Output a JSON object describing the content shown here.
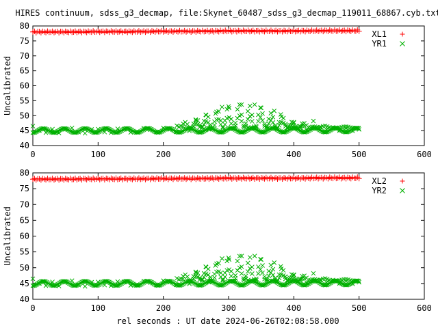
{
  "figure": {
    "title": "HIRES continuum, sdss_g3_decmap, file:Skynet_60487_sdss_g3_decmap_119011_68867.cyb.txt",
    "xlabel": "rel seconds : UT date 2024-06-26T02:08:58.000"
  },
  "colors": {
    "xl": "#ff0000",
    "yr": "#00b000",
    "frame": "#000000"
  },
  "chart_data": [
    {
      "type": "scatter",
      "title": "HIRES continuum, sdss_g3_decmap, file:Skynet_60487_sdss_g3_decmap_119011_68867.cyb.txt",
      "xlabel": "",
      "ylabel": "Uncalibrated",
      "xlim": [
        0,
        600
      ],
      "ylim": [
        40,
        80
      ],
      "xticks": [
        0,
        100,
        200,
        300,
        400,
        500,
        600
      ],
      "yticks": [
        40,
        45,
        50,
        55,
        60,
        65,
        70,
        75,
        80
      ],
      "grid": false,
      "legend_position": "top-right",
      "series": [
        {
          "name": "XL1",
          "marker": "plus",
          "color": "#ff0000",
          "x": [
            0,
            50,
            100,
            150,
            200,
            250,
            300,
            350,
            400,
            450,
            500
          ],
          "y": [
            78.0,
            78.0,
            78.1,
            78.1,
            78.2,
            78.2,
            78.3,
            78.3,
            78.3,
            78.4,
            78.4
          ]
        },
        {
          "name": "YR1",
          "marker": "cross",
          "color": "#00b000",
          "x": [
            0,
            10,
            20,
            30,
            40,
            50,
            60,
            70,
            80,
            90,
            100,
            110,
            120,
            130,
            140,
            150,
            160,
            170,
            180,
            190,
            200,
            210,
            220,
            230,
            240,
            250,
            260,
            265,
            270,
            280,
            290,
            300,
            310,
            320,
            330,
            340,
            350,
            360,
            370,
            380,
            390,
            400,
            410,
            420,
            430,
            440,
            450,
            460,
            470,
            480,
            490,
            500
          ],
          "y": [
            46.5,
            45.0,
            44.3,
            45.5,
            44.2,
            45.4,
            45.9,
            44.5,
            44.1,
            45.4,
            45.5,
            44.5,
            44.3,
            45.6,
            45.4,
            44.4,
            44.5,
            45.8,
            45.3,
            44.5,
            45.9,
            45.4,
            44.6,
            46.4,
            44.9,
            48.4,
            46.2,
            50.3,
            45.4,
            50.7,
            52.9,
            53.1,
            45.9,
            53.7,
            46.1,
            53.7,
            52.6,
            45.8,
            51.6,
            50.4,
            46.0,
            47.8,
            46.4,
            45.2,
            48.2,
            46.2,
            45.4,
            46.1,
            45.0,
            45.8,
            44.9,
            45.4
          ]
        }
      ]
    },
    {
      "type": "scatter",
      "title": "",
      "xlabel": "rel seconds : UT date 2024-06-26T02:08:58.000",
      "ylabel": "Uncalibrated",
      "xlim": [
        0,
        600
      ],
      "ylim": [
        40,
        80
      ],
      "xticks": [
        0,
        100,
        200,
        300,
        400,
        500,
        600
      ],
      "yticks": [
        40,
        45,
        50,
        55,
        60,
        65,
        70,
        75,
        80
      ],
      "grid": false,
      "legend_position": "top-right",
      "series": [
        {
          "name": "XL2",
          "marker": "plus",
          "color": "#ff0000",
          "x": [
            0,
            50,
            100,
            150,
            200,
            250,
            300,
            350,
            400,
            450,
            500
          ],
          "y": [
            78.0,
            78.0,
            78.1,
            78.1,
            78.2,
            78.2,
            78.3,
            78.3,
            78.3,
            78.4,
            78.4
          ]
        },
        {
          "name": "YR2",
          "marker": "cross",
          "color": "#00b000",
          "x": [
            0,
            10,
            20,
            30,
            40,
            50,
            60,
            70,
            80,
            90,
            100,
            110,
            120,
            130,
            140,
            150,
            160,
            170,
            180,
            190,
            200,
            210,
            220,
            230,
            240,
            250,
            260,
            265,
            270,
            280,
            290,
            300,
            310,
            320,
            330,
            340,
            350,
            360,
            370,
            380,
            390,
            400,
            410,
            420,
            430,
            440,
            450,
            460,
            470,
            480,
            490,
            500
          ],
          "y": [
            46.5,
            45.0,
            44.3,
            45.5,
            44.2,
            45.4,
            45.9,
            44.5,
            44.1,
            45.4,
            45.5,
            44.5,
            44.3,
            45.6,
            45.4,
            44.4,
            44.5,
            45.8,
            45.3,
            44.5,
            45.9,
            45.4,
            44.6,
            46.4,
            44.9,
            48.4,
            46.2,
            50.3,
            45.4,
            50.7,
            52.9,
            53.1,
            45.9,
            53.7,
            46.1,
            53.7,
            52.6,
            45.8,
            51.6,
            50.4,
            46.0,
            47.8,
            46.4,
            45.2,
            48.2,
            46.2,
            45.4,
            46.1,
            45.0,
            45.8,
            44.9,
            45.4
          ]
        }
      ]
    }
  ]
}
